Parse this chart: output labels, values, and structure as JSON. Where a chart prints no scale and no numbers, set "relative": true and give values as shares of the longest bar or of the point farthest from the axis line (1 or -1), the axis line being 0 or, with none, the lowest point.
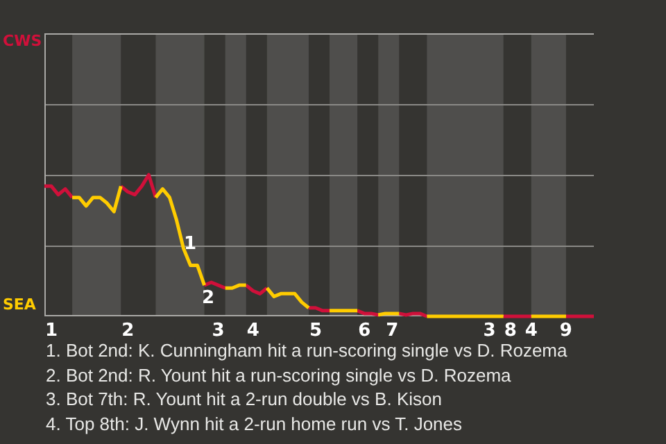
{
  "chart_data": {
    "type": "line",
    "relative": true,
    "categories": [
      null,
      "1",
      null,
      null,
      null,
      null,
      null,
      null,
      null,
      null,
      null,
      null,
      "2",
      null,
      null,
      null,
      null,
      null,
      null,
      null,
      null,
      null,
      null,
      null,
      null,
      "3",
      null,
      null,
      null,
      null,
      "4",
      null,
      null,
      null,
      null,
      null,
      null,
      null,
      null,
      "5",
      null,
      null,
      null,
      null,
      null,
      null,
      "6",
      null,
      null,
      null,
      "7",
      null,
      null,
      null,
      null,
      null,
      null,
      null,
      null,
      null,
      null,
      null,
      null,
      null,
      "3",
      null,
      null,
      "8",
      null,
      null,
      "4",
      null,
      null,
      null,
      null,
      "9",
      null,
      null,
      null,
      null
    ],
    "legend": false,
    "marker": "none",
    "ref_lines": [
      {
        "axis": "y",
        "value": 0.5,
        "color": "#8a8986"
      },
      {
        "axis": "y",
        "value": 1,
        "color": "#8a8986"
      },
      {
        "axis": "y",
        "value": 1.5,
        "color": "#8a8986"
      }
    ],
    "series": [
      {
        "color": "#ffcc00",
        "values": [
          null,
          null,
          null,
          null,
          0.84,
          0.84,
          0.78,
          0.84,
          0.84,
          0.8,
          0.74,
          0.92,
          null,
          null,
          null,
          null,
          0.84,
          0.9,
          0.84,
          0.68,
          0.48,
          0.36,
          0.36,
          0.22,
          null,
          null,
          0.2,
          0.2,
          0.22,
          0.22,
          null,
          null,
          0.2,
          0.14,
          0.16,
          0.16,
          0.16,
          0.1,
          0.06,
          null,
          null,
          0.04,
          0.04,
          0.04,
          0.04,
          0.04,
          null,
          null,
          0.01,
          0.02,
          0.02,
          0.02,
          null,
          null,
          null,
          0,
          0,
          0,
          0,
          0,
          0,
          0,
          0,
          0,
          0,
          0,
          0,
          null,
          null,
          null,
          0,
          0,
          0,
          0,
          0,
          0,
          null,
          null,
          null,
          null
        ]
      },
      {
        "color": "#d0103a",
        "values": [
          0.92,
          0.92,
          0.86,
          0.9,
          0.84,
          null,
          null,
          null,
          null,
          null,
          null,
          0.92,
          0.88,
          0.86,
          0.92,
          1,
          0.84,
          null,
          null,
          null,
          null,
          null,
          null,
          0.22,
          0.24,
          0.22,
          0.2,
          null,
          null,
          0.22,
          0.18,
          0.16,
          0.2,
          null,
          null,
          null,
          null,
          null,
          0.06,
          0.06,
          0.04,
          0.04,
          null,
          null,
          null,
          0.04,
          0.02,
          0.02,
          0.01,
          null,
          null,
          0.02,
          0.01,
          0.02,
          0.02,
          0,
          null,
          null,
          null,
          null,
          null,
          null,
          null,
          null,
          null,
          null,
          0,
          0,
          0,
          0,
          0,
          null,
          null,
          null,
          null,
          0,
          0,
          0,
          0,
          0
        ]
      }
    ],
    "annotations": [
      "CWS",
      "SEA",
      "1",
      "2",
      "1. Bot 2nd: K. Cunningham hit a run-scoring single vs D. Rozema",
      "2. Bot 2nd: R. Yount hit a run-scoring single vs D. Rozema",
      "3. Bot 7th: R. Yount hit a 2-run double vs B. Kison",
      "4. Top 8th: J. Wynn hit a 2-run home run vs T. Jones"
    ]
  }
}
